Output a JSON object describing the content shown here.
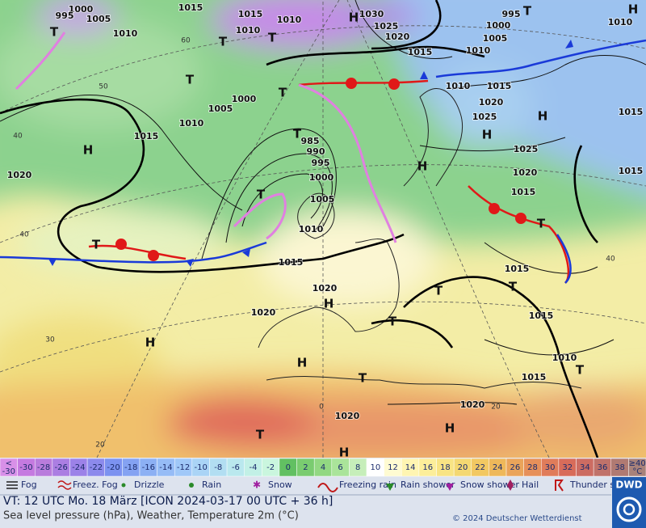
{
  "map": {
    "isobar_labels": [
      "1000",
      "995",
      "1005",
      "1015",
      "1010",
      "1015",
      "1010",
      "1010",
      "1030",
      "1025",
      "1020",
      "1015",
      "995",
      "1000",
      "1005",
      "1010",
      "1010",
      "1010",
      "1015",
      "1020",
      "1025",
      "1025",
      "1020",
      "1015",
      "1015",
      "1015",
      "1005",
      "1000",
      "1010",
      "1015",
      "985",
      "990",
      "995",
      "1000",
      "1005",
      "1010",
      "1020",
      "1015",
      "1020",
      "1020",
      "1015",
      "1015",
      "1010",
      "1015",
      "1020",
      "1020"
    ],
    "pressure_centers": [
      "H",
      "T",
      "T",
      "T",
      "T",
      "H",
      "T",
      "T",
      "T",
      "H",
      "H",
      "H",
      "T",
      "T",
      "T",
      "H",
      "T",
      "H",
      "H",
      "T",
      "T",
      "H",
      "H",
      "T",
      "T",
      "H",
      "T"
    ],
    "grid_labels": [
      "60",
      "50",
      "40",
      "40",
      "30",
      "20",
      "20",
      "40",
      "0"
    ]
  },
  "temperature_scale": {
    "low_end": {
      "top": "<",
      "bottom": "-30"
    },
    "steps": [
      {
        "label": "-30",
        "color": "#c57ae0"
      },
      {
        "label": "-28",
        "color": "#b97cdc"
      },
      {
        "label": "-26",
        "color": "#ab7ee2"
      },
      {
        "label": "-24",
        "color": "#9c82e8"
      },
      {
        "label": "-22",
        "color": "#8c8aec"
      },
      {
        "label": "-20",
        "color": "#7c92f0"
      },
      {
        "label": "-18",
        "color": "#84a2f2"
      },
      {
        "label": "-16",
        "color": "#8cb0f4"
      },
      {
        "label": "-14",
        "color": "#96bcf6"
      },
      {
        "label": "-12",
        "color": "#a0c8f8"
      },
      {
        "label": "-10",
        "color": "#aad4f6"
      },
      {
        "label": "-8",
        "color": "#b2def2"
      },
      {
        "label": "-6",
        "color": "#bae8ee"
      },
      {
        "label": "-4",
        "color": "#c2f0e6"
      },
      {
        "label": "-2",
        "color": "#caf6de"
      },
      {
        "label": "0",
        "color": "#62c062"
      },
      {
        "label": "2",
        "color": "#7acc70"
      },
      {
        "label": "4",
        "color": "#92d882"
      },
      {
        "label": "6",
        "color": "#aae49a"
      },
      {
        "label": "8",
        "color": "#c6eeba"
      },
      {
        "label": "10",
        "color": "#ffffff"
      },
      {
        "label": "12",
        "color": "#fffbd2"
      },
      {
        "label": "14",
        "color": "#fff5b2"
      },
      {
        "label": "16",
        "color": "#fcee9a"
      },
      {
        "label": "18",
        "color": "#f8e484"
      },
      {
        "label": "20",
        "color": "#f4d872"
      },
      {
        "label": "22",
        "color": "#f2c862"
      },
      {
        "label": "24",
        "color": "#eeb85a"
      },
      {
        "label": "26",
        "color": "#eaa45a"
      },
      {
        "label": "28",
        "color": "#e6905a"
      },
      {
        "label": "30",
        "color": "#e07c5a"
      },
      {
        "label": "32",
        "color": "#d86c5a"
      },
      {
        "label": "34",
        "color": "#cc6c62"
      },
      {
        "label": "36",
        "color": "#c0726a"
      },
      {
        "label": "38",
        "color": "#b07a72"
      }
    ],
    "low_color": "#d890e8",
    "high_end": {
      "top": "≥40",
      "bottom": "°C"
    },
    "high_color": "#a8827a"
  },
  "weather_legend": [
    "Fog",
    "Freez. Fog",
    "Drizzle",
    "Rain",
    "Snow",
    "Freezing rain",
    "Rain shower",
    "Snow shower",
    "Hail",
    "Thunder storm"
  ],
  "footer": {
    "valid_time": "VT: 12 UTC Mo.  18 März [ICON 2024-03-17  00 UTC + 36 h]",
    "description": "Sea level pressure (hPa), Weather, Temperature 2m (°C)",
    "copyright": "© 2024 Deutscher Wetterdienst",
    "logo": "DWD"
  }
}
